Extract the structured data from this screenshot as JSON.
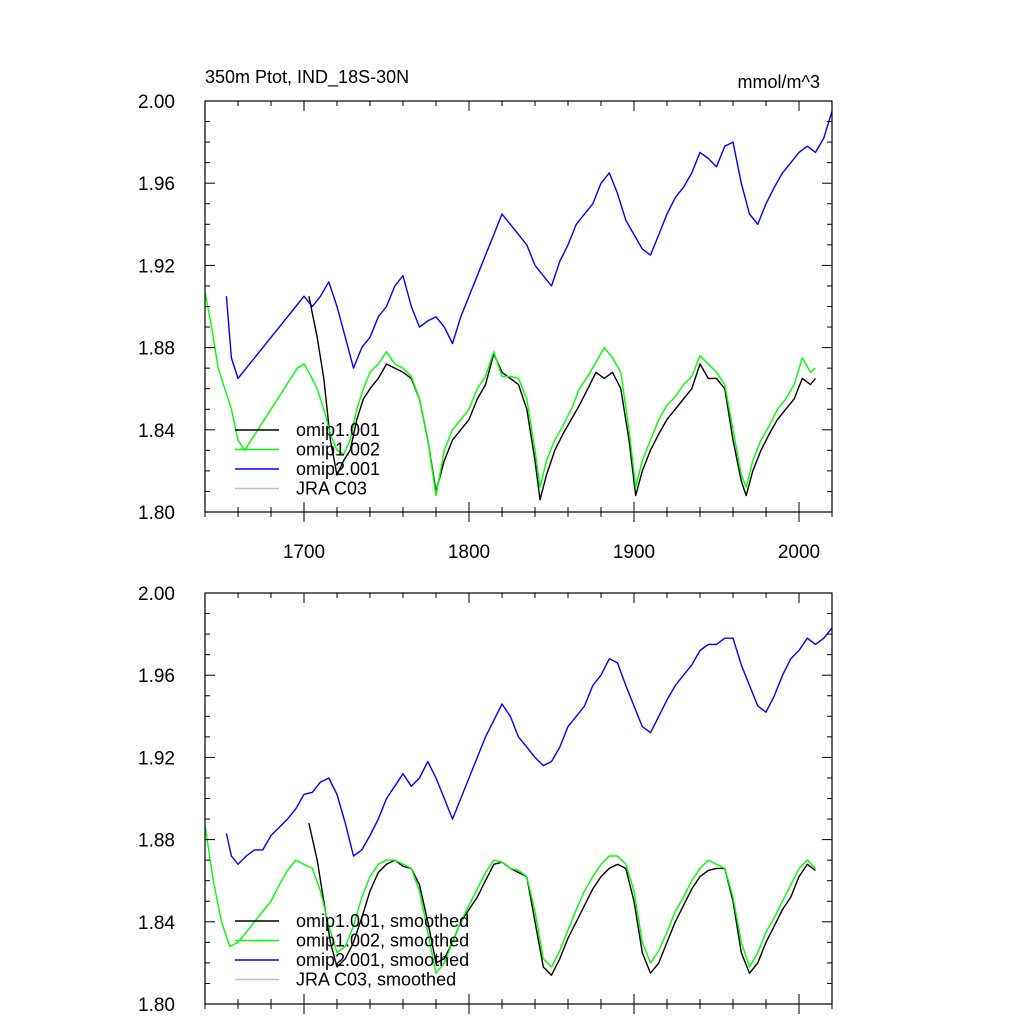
{
  "title_left": "350m Ptot, IND_18S-30N",
  "title_right": "mmol/m^3",
  "chart_data": [
    {
      "type": "line",
      "panel": "top",
      "xlim": [
        1640,
        2020
      ],
      "ylim": [
        1.8,
        2.0
      ],
      "xticks": [
        1700,
        1800,
        1900,
        2000
      ],
      "xtick_labels": [
        "1700",
        "1800",
        "1900",
        "2000"
      ],
      "yticks": [
        1.8,
        1.84,
        1.88,
        1.92,
        1.96,
        2.0
      ],
      "ytick_labels": [
        "1.80",
        "1.84",
        "1.88",
        "1.92",
        "1.96",
        "2.00"
      ],
      "legend_position": "bottom-left",
      "series": [
        {
          "name": "omip1.001",
          "color": "#000000",
          "x": [
            1703,
            1708,
            1712,
            1716,
            1720,
            1724,
            1728,
            1732,
            1736,
            1740,
            1745,
            1750,
            1755,
            1760,
            1765,
            1770,
            1775,
            1780,
            1785,
            1790,
            1795,
            1800,
            1805,
            1810,
            1815,
            1820,
            1825,
            1830,
            1835,
            1840,
            1843,
            1847,
            1852,
            1857,
            1862,
            1867,
            1872,
            1877,
            1882,
            1887,
            1892,
            1897,
            1901,
            1905,
            1910,
            1915,
            1920,
            1925,
            1930,
            1935,
            1940,
            1945,
            1950,
            1955,
            1960,
            1965,
            1968,
            1972,
            1977,
            1982,
            1987,
            1992,
            1997,
            2002,
            2007,
            2010
          ],
          "y": [
            1.905,
            1.885,
            1.865,
            1.835,
            1.818,
            1.825,
            1.83,
            1.845,
            1.855,
            1.86,
            1.865,
            1.872,
            1.87,
            1.868,
            1.865,
            1.855,
            1.835,
            1.81,
            1.825,
            1.835,
            1.84,
            1.845,
            1.855,
            1.862,
            1.877,
            1.868,
            1.865,
            1.862,
            1.85,
            1.825,
            1.806,
            1.818,
            1.83,
            1.838,
            1.845,
            1.852,
            1.86,
            1.868,
            1.865,
            1.868,
            1.86,
            1.835,
            1.808,
            1.82,
            1.83,
            1.838,
            1.845,
            1.85,
            1.855,
            1.86,
            1.872,
            1.865,
            1.865,
            1.86,
            1.835,
            1.815,
            1.808,
            1.82,
            1.83,
            1.838,
            1.845,
            1.85,
            1.855,
            1.865,
            1.862,
            1.865
          ]
        },
        {
          "name": "omip1.002",
          "color": "#00ff00",
          "x": [
            1640,
            1644,
            1648,
            1652,
            1656,
            1660,
            1664,
            1668,
            1672,
            1676,
            1680,
            1684,
            1688,
            1692,
            1696,
            1700,
            1703,
            1708,
            1712,
            1716,
            1720,
            1724,
            1728,
            1732,
            1736,
            1740,
            1745,
            1750,
            1755,
            1760,
            1765,
            1770,
            1775,
            1780,
            1785,
            1790,
            1795,
            1800,
            1805,
            1810,
            1815,
            1820,
            1825,
            1830,
            1835,
            1840,
            1843,
            1847,
            1852,
            1857,
            1862,
            1867,
            1872,
            1877,
            1882,
            1887,
            1892,
            1897,
            1901,
            1905,
            1910,
            1915,
            1920,
            1925,
            1930,
            1935,
            1940,
            1945,
            1950,
            1955,
            1960,
            1965,
            1968,
            1972,
            1977,
            1982,
            1987,
            1992,
            1997,
            2002,
            2007,
            2010
          ],
          "y": [
            1.907,
            1.89,
            1.87,
            1.86,
            1.85,
            1.835,
            1.83,
            1.835,
            1.84,
            1.845,
            1.85,
            1.855,
            1.86,
            1.865,
            1.87,
            1.872,
            1.868,
            1.86,
            1.85,
            1.838,
            1.83,
            1.828,
            1.835,
            1.85,
            1.86,
            1.868,
            1.872,
            1.878,
            1.872,
            1.87,
            1.866,
            1.855,
            1.835,
            1.808,
            1.83,
            1.84,
            1.845,
            1.85,
            1.86,
            1.866,
            1.878,
            1.866,
            1.866,
            1.865,
            1.855,
            1.83,
            1.812,
            1.825,
            1.835,
            1.842,
            1.85,
            1.86,
            1.866,
            1.873,
            1.88,
            1.875,
            1.868,
            1.84,
            1.812,
            1.825,
            1.835,
            1.845,
            1.852,
            1.856,
            1.862,
            1.866,
            1.876,
            1.872,
            1.868,
            1.862,
            1.84,
            1.818,
            1.812,
            1.825,
            1.835,
            1.842,
            1.85,
            1.855,
            1.862,
            1.875,
            1.868,
            1.87
          ]
        },
        {
          "name": "omip2.001",
          "color": "#0000ff",
          "x": [
            1653,
            1656,
            1660,
            1665,
            1670,
            1675,
            1680,
            1685,
            1690,
            1695,
            1700,
            1705,
            1710,
            1715,
            1720,
            1725,
            1730,
            1735,
            1740,
            1745,
            1750,
            1755,
            1760,
            1765,
            1770,
            1775,
            1780,
            1785,
            1790,
            1795,
            1800,
            1805,
            1810,
            1815,
            1820,
            1825,
            1830,
            1835,
            1840,
            1845,
            1850,
            1855,
            1860,
            1865,
            1870,
            1875,
            1880,
            1885,
            1890,
            1895,
            1900,
            1905,
            1910,
            1915,
            1920,
            1925,
            1930,
            1935,
            1940,
            1945,
            1950,
            1955,
            1960,
            1965,
            1970,
            1975,
            1980,
            1985,
            1990,
            1995,
            2000,
            2005,
            2010,
            2015,
            2020
          ],
          "y": [
            1.905,
            1.875,
            1.865,
            1.87,
            1.875,
            1.88,
            1.885,
            1.89,
            1.895,
            1.9,
            1.905,
            1.9,
            1.905,
            1.912,
            1.9,
            1.885,
            1.87,
            1.88,
            1.885,
            1.895,
            1.9,
            1.91,
            1.915,
            1.9,
            1.89,
            1.893,
            1.895,
            1.89,
            1.882,
            1.895,
            1.905,
            1.915,
            1.925,
            1.935,
            1.945,
            1.94,
            1.935,
            1.93,
            1.92,
            1.915,
            1.91,
            1.922,
            1.93,
            1.94,
            1.945,
            1.95,
            1.96,
            1.965,
            1.955,
            1.942,
            1.935,
            1.928,
            1.925,
            1.935,
            1.945,
            1.953,
            1.958,
            1.965,
            1.975,
            1.972,
            1.968,
            1.978,
            1.98,
            1.96,
            1.945,
            1.94,
            1.95,
            1.958,
            1.965,
            1.97,
            1.975,
            1.978,
            1.975,
            1.982,
            1.995
          ]
        },
        {
          "name": "JRA C03",
          "color": "#c0c0c0",
          "x": [],
          "y": []
        }
      ]
    },
    {
      "type": "line",
      "panel": "bottom",
      "xlim": [
        1640,
        2020
      ],
      "ylim": [
        1.8,
        2.0
      ],
      "xticks": [
        1700,
        1800,
        1900,
        2000
      ],
      "yticks": [
        1.8,
        1.84,
        1.88,
        1.92,
        1.96,
        2.0
      ],
      "ytick_labels": [
        "1.80",
        "1.84",
        "1.88",
        "1.92",
        "1.96",
        "2.00"
      ],
      "legend_position": "bottom-left",
      "series": [
        {
          "name": "omip1.001, smoothed",
          "color": "#000000",
          "x": [
            1703,
            1708,
            1712,
            1716,
            1720,
            1725,
            1730,
            1735,
            1740,
            1745,
            1750,
            1755,
            1760,
            1765,
            1770,
            1775,
            1780,
            1785,
            1790,
            1795,
            1800,
            1805,
            1810,
            1815,
            1820,
            1825,
            1830,
            1835,
            1840,
            1845,
            1850,
            1855,
            1860,
            1865,
            1870,
            1875,
            1880,
            1885,
            1890,
            1895,
            1900,
            1905,
            1910,
            1915,
            1920,
            1925,
            1930,
            1935,
            1940,
            1945,
            1950,
            1955,
            1960,
            1965,
            1970,
            1975,
            1980,
            1985,
            1990,
            1995,
            2000,
            2005,
            2010
          ],
          "y": [
            1.888,
            1.87,
            1.85,
            1.83,
            1.818,
            1.822,
            1.83,
            1.842,
            1.855,
            1.864,
            1.868,
            1.87,
            1.867,
            1.866,
            1.858,
            1.84,
            1.82,
            1.822,
            1.83,
            1.84,
            1.846,
            1.852,
            1.86,
            1.868,
            1.869,
            1.866,
            1.864,
            1.862,
            1.84,
            1.818,
            1.814,
            1.822,
            1.832,
            1.84,
            1.848,
            1.856,
            1.862,
            1.866,
            1.868,
            1.866,
            1.85,
            1.825,
            1.815,
            1.82,
            1.83,
            1.84,
            1.848,
            1.856,
            1.862,
            1.865,
            1.866,
            1.866,
            1.85,
            1.825,
            1.815,
            1.82,
            1.83,
            1.838,
            1.846,
            1.852,
            1.862,
            1.868,
            1.865
          ]
        },
        {
          "name": "omip1.002, smoothed",
          "color": "#00ff00",
          "x": [
            1640,
            1645,
            1650,
            1655,
            1660,
            1665,
            1670,
            1675,
            1680,
            1685,
            1690,
            1695,
            1700,
            1705,
            1710,
            1715,
            1720,
            1725,
            1730,
            1735,
            1740,
            1745,
            1750,
            1755,
            1760,
            1765,
            1770,
            1775,
            1780,
            1785,
            1790,
            1795,
            1800,
            1805,
            1810,
            1815,
            1820,
            1825,
            1830,
            1835,
            1840,
            1845,
            1850,
            1855,
            1860,
            1865,
            1870,
            1875,
            1880,
            1885,
            1890,
            1895,
            1900,
            1905,
            1910,
            1915,
            1920,
            1925,
            1930,
            1935,
            1940,
            1945,
            1950,
            1955,
            1960,
            1965,
            1970,
            1975,
            1980,
            1985,
            1990,
            1995,
            2000,
            2005,
            2010
          ],
          "y": [
            1.887,
            1.86,
            1.84,
            1.828,
            1.83,
            1.835,
            1.84,
            1.845,
            1.85,
            1.858,
            1.865,
            1.87,
            1.868,
            1.866,
            1.855,
            1.838,
            1.825,
            1.828,
            1.838,
            1.852,
            1.862,
            1.868,
            1.87,
            1.87,
            1.868,
            1.866,
            1.855,
            1.835,
            1.815,
            1.82,
            1.83,
            1.84,
            1.848,
            1.856,
            1.864,
            1.87,
            1.869,
            1.866,
            1.865,
            1.862,
            1.845,
            1.822,
            1.818,
            1.826,
            1.836,
            1.846,
            1.855,
            1.862,
            1.868,
            1.872,
            1.872,
            1.868,
            1.855,
            1.83,
            1.82,
            1.826,
            1.835,
            1.845,
            1.852,
            1.86,
            1.866,
            1.87,
            1.868,
            1.866,
            1.852,
            1.83,
            1.818,
            1.825,
            1.835,
            1.842,
            1.85,
            1.858,
            1.866,
            1.87,
            1.866
          ]
        },
        {
          "name": "omip2.001, smoothed",
          "color": "#0000ff",
          "x": [
            1653,
            1656,
            1660,
            1665,
            1670,
            1675,
            1680,
            1685,
            1690,
            1695,
            1700,
            1705,
            1710,
            1715,
            1720,
            1725,
            1730,
            1735,
            1740,
            1745,
            1750,
            1755,
            1760,
            1765,
            1770,
            1775,
            1780,
            1785,
            1790,
            1795,
            1800,
            1805,
            1810,
            1815,
            1820,
            1825,
            1830,
            1835,
            1840,
            1845,
            1850,
            1855,
            1860,
            1865,
            1870,
            1875,
            1880,
            1885,
            1890,
            1895,
            1900,
            1905,
            1910,
            1915,
            1920,
            1925,
            1930,
            1935,
            1940,
            1945,
            1950,
            1955,
            1960,
            1965,
            1970,
            1975,
            1980,
            1985,
            1990,
            1995,
            2000,
            2005,
            2010,
            2015,
            2020
          ],
          "y": [
            1.883,
            1.872,
            1.868,
            1.872,
            1.875,
            1.875,
            1.882,
            1.886,
            1.89,
            1.895,
            1.902,
            1.903,
            1.908,
            1.91,
            1.902,
            1.888,
            1.872,
            1.875,
            1.882,
            1.89,
            1.9,
            1.906,
            1.912,
            1.906,
            1.91,
            1.918,
            1.91,
            1.9,
            1.89,
            1.9,
            1.91,
            1.92,
            1.93,
            1.938,
            1.946,
            1.94,
            1.93,
            1.925,
            1.92,
            1.916,
            1.918,
            1.925,
            1.935,
            1.94,
            1.945,
            1.955,
            1.96,
            1.968,
            1.966,
            1.955,
            1.945,
            1.935,
            1.932,
            1.94,
            1.948,
            1.955,
            1.96,
            1.965,
            1.972,
            1.975,
            1.975,
            1.978,
            1.978,
            1.965,
            1.955,
            1.945,
            1.942,
            1.95,
            1.96,
            1.968,
            1.972,
            1.978,
            1.975,
            1.978,
            1.983
          ]
        },
        {
          "name": "JRA C03, smoothed",
          "color": "#c0c0c0",
          "x": [],
          "y": []
        }
      ]
    }
  ]
}
